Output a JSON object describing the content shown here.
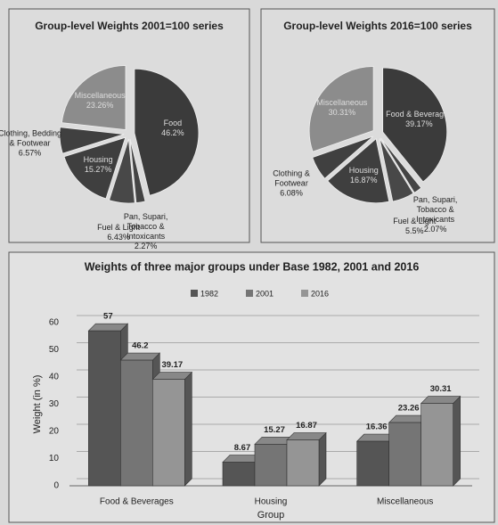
{
  "chart_data": [
    {
      "type": "pie",
      "title": "Group-level Weights 2001=100 series",
      "categories": [
        "Food",
        "Pan, Supari, Tobacco & Intoxicants",
        "Fuel & Light",
        "Housing",
        "Clothing, Bedding & Footwear",
        "Miscellaneous"
      ],
      "values": [
        46.2,
        2.27,
        6.43,
        15.27,
        6.57,
        23.26
      ],
      "value_labels": [
        "46.2%",
        "2.27%",
        "6.43%",
        "15.27%",
        "6.57%",
        "23.26%"
      ],
      "colors": [
        "#3b3b3b",
        "#444444",
        "#484848",
        "#3f3f3f",
        "#404040",
        "#8c8c8c"
      ]
    },
    {
      "type": "pie",
      "title": "Group-level Weights 2016=100 series",
      "categories": [
        "Food & Beverages",
        "Pan, Supari, Tobacco & Intoxicants",
        "Fuel & Light",
        "Housing",
        "Clothing & Footwear",
        "Miscellaneous"
      ],
      "values": [
        39.17,
        2.07,
        5.5,
        16.87,
        6.08,
        30.31
      ],
      "value_labels": [
        "39.17%",
        "2.07%",
        "5.5%",
        "16.87%",
        "6.08%",
        "30.31%"
      ],
      "colors": [
        "#3b3b3b",
        "#444444",
        "#484848",
        "#3f3f3f",
        "#404040",
        "#8c8c8c"
      ]
    },
    {
      "type": "bar",
      "title": "Weights of three major groups under Base 1982, 2001 and 2016",
      "categories": [
        "Food & Beverages",
        "Housing",
        "Miscellaneous"
      ],
      "series": [
        {
          "name": "1982",
          "color": "#555555",
          "values": [
            57,
            8.67,
            16.36
          ]
        },
        {
          "name": "2001",
          "color": "#757575",
          "values": [
            46.2,
            15.27,
            23.26
          ]
        },
        {
          "name": "2016",
          "color": "#959595",
          "values": [
            39.17,
            16.87,
            30.31
          ]
        }
      ],
      "ylabel": "Weight (in %)",
      "xlabel": "Group",
      "ylim": [
        0,
        60
      ],
      "yticks": [
        0,
        10,
        20,
        30,
        40,
        50,
        60
      ],
      "grid": true,
      "legend": "top"
    }
  ]
}
